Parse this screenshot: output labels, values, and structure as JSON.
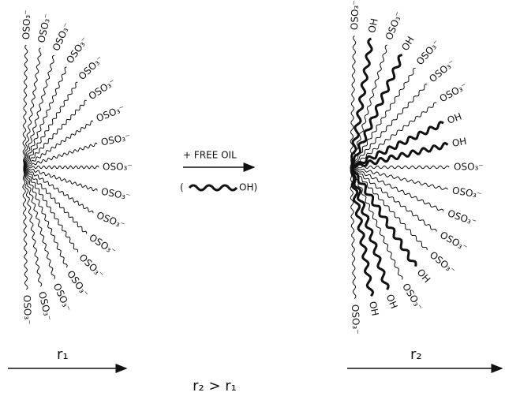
{
  "left_micelle": {
    "labels": [
      "OSO₃⁻",
      "OSO₃⁻",
      "OSO₃⁻",
      "OSO₃⁻",
      "OSO₃⁻",
      "OSO₃⁻",
      "OSO₃⁻",
      "OSO₃⁻",
      "OSO₃⁻",
      "OSO₃⁻",
      "OSO₃⁻",
      "OSO₃⁻",
      "OSO₃⁻",
      "OSO₃⁻",
      "OSO₃⁻",
      "OSO₃⁻",
      "OSO₃⁻"
    ],
    "radius_label": "r₁"
  },
  "transition": {
    "label": "+ FREE OIL",
    "oil_open": "(",
    "oil_label": "OH)"
  },
  "right_micelle": {
    "labels": [
      "OSO₃⁻",
      "OH",
      "OSO₃⁻",
      "OH",
      "OSO₃⁻",
      "OSO₃⁻",
      "OSO₃⁻",
      "OH",
      "OH",
      "OSO₃⁻",
      "OSO₃⁻",
      "OSO₃⁻",
      "OSO₃⁻",
      "OSO₃⁻",
      "OH",
      "OSO₃⁻",
      "OH",
      "OH",
      "OSO₃⁻"
    ],
    "radius_label": "r₂"
  },
  "comparison": "r₂ > r₁"
}
